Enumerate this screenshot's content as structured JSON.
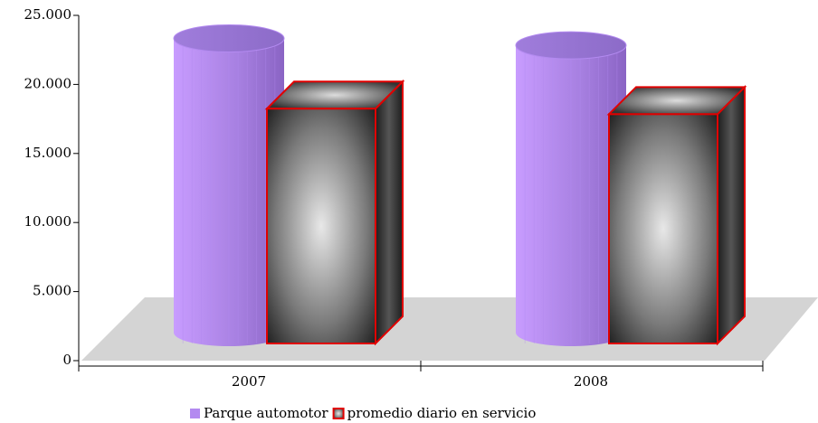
{
  "chart_data": {
    "type": "bar3d",
    "categories": [
      "2007",
      "2008"
    ],
    "series": [
      {
        "name": "Parque automotor",
        "color": "#b38af0",
        "shape": "cylinder",
        "values": [
          21300,
          20800
        ]
      },
      {
        "name": "promedio diario en servicio",
        "color": "#808080",
        "edge_color": "#e00000",
        "shape": "box",
        "values": [
          17000,
          16600
        ]
      }
    ],
    "ylim": [
      0,
      25000
    ],
    "yticks": [
      0,
      {
        "value": 5000,
        "label": "5.000"
      },
      {
        "value": 10000,
        "label": "10.000"
      },
      {
        "value": 15000,
        "label": "15.000"
      },
      {
        "value": 20000,
        "label": "20.000"
      },
      {
        "value": 25000,
        "label": "25.000"
      }
    ],
    "legend": "bottom"
  }
}
